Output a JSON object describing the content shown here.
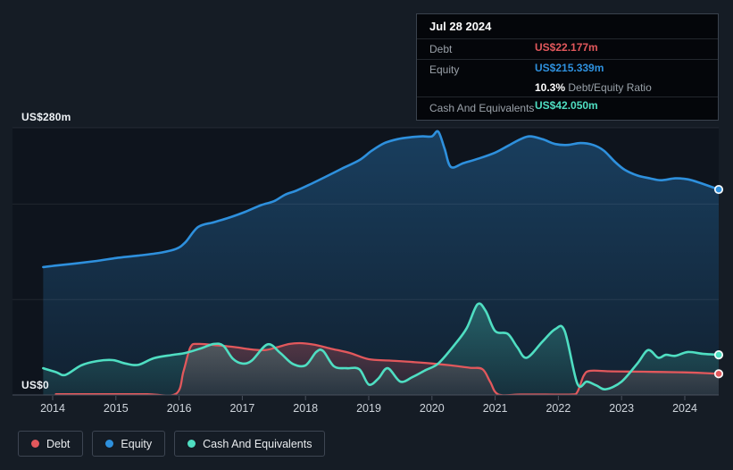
{
  "tooltip": {
    "date": "Jul 28 2024",
    "debt_label": "Debt",
    "debt_value": "US$22.177m",
    "equity_label": "Equity",
    "equity_value": "US$215.339m",
    "ratio_value": "10.3%",
    "ratio_label": "Debt/Equity Ratio",
    "cash_label": "Cash And Equivalents",
    "cash_value": "US$42.050m"
  },
  "chart_data": {
    "type": "area",
    "x_axis": {
      "ticks": [
        "2014",
        "2015",
        "2016",
        "2017",
        "2018",
        "2019",
        "2020",
        "2021",
        "2022",
        "2023",
        "2024"
      ],
      "start": 2013.85,
      "end": 2024.57
    },
    "y_axis": {
      "max_label": "US$280m",
      "zero_label": "US$0",
      "max": 280,
      "min": 0,
      "unit": "US$ millions",
      "gridlines": [
        280,
        200,
        100,
        0
      ]
    },
    "series": [
      {
        "name": "Debt",
        "key": "debt",
        "color": "#e2585c",
        "points": [
          [
            2014.05,
            0.8
          ],
          [
            2014.5,
            0.8
          ],
          [
            2015.0,
            0.8
          ],
          [
            2015.5,
            0.8
          ],
          [
            2015.95,
            1.2
          ],
          [
            2016.07,
            25
          ],
          [
            2016.18,
            50
          ],
          [
            2016.3,
            53.5
          ],
          [
            2016.6,
            52
          ],
          [
            2016.9,
            50
          ],
          [
            2017.1,
            48
          ],
          [
            2017.35,
            47
          ],
          [
            2017.55,
            50
          ],
          [
            2017.75,
            53.5
          ],
          [
            2017.95,
            54.2
          ],
          [
            2018.15,
            52.5
          ],
          [
            2018.4,
            48.5
          ],
          [
            2018.7,
            44
          ],
          [
            2019.0,
            37.5
          ],
          [
            2019.35,
            36
          ],
          [
            2019.7,
            34.5
          ],
          [
            2020.0,
            33
          ],
          [
            2020.3,
            31
          ],
          [
            2020.6,
            28.5
          ],
          [
            2020.8,
            27
          ],
          [
            2020.92,
            14
          ],
          [
            2021.05,
            0.6
          ],
          [
            2021.4,
            0.5
          ],
          [
            2021.8,
            0.5
          ],
          [
            2022.2,
            0.5
          ],
          [
            2022.3,
            3
          ],
          [
            2022.4,
            20
          ],
          [
            2022.5,
            25.3
          ],
          [
            2022.8,
            24.8
          ],
          [
            2023.1,
            24.5
          ],
          [
            2023.5,
            24.2
          ],
          [
            2023.9,
            23.8
          ],
          [
            2024.2,
            23.2
          ],
          [
            2024.57,
            22.177
          ]
        ]
      },
      {
        "name": "Equity",
        "key": "equity",
        "color": "#2e90dd",
        "points": [
          [
            2013.85,
            134
          ],
          [
            2014.1,
            136
          ],
          [
            2014.4,
            138
          ],
          [
            2014.7,
            140.5
          ],
          [
            2015.0,
            143.5
          ],
          [
            2015.35,
            146
          ],
          [
            2015.7,
            149
          ],
          [
            2015.95,
            153
          ],
          [
            2016.1,
            160
          ],
          [
            2016.3,
            176
          ],
          [
            2016.55,
            181
          ],
          [
            2016.8,
            186
          ],
          [
            2017.05,
            192
          ],
          [
            2017.3,
            199
          ],
          [
            2017.5,
            203
          ],
          [
            2017.68,
            210
          ],
          [
            2017.85,
            214
          ],
          [
            2018.05,
            220
          ],
          [
            2018.3,
            228
          ],
          [
            2018.6,
            238
          ],
          [
            2018.85,
            246
          ],
          [
            2019.05,
            256
          ],
          [
            2019.25,
            264
          ],
          [
            2019.45,
            268
          ],
          [
            2019.65,
            270
          ],
          [
            2019.85,
            271
          ],
          [
            2020.0,
            271
          ],
          [
            2020.1,
            276
          ],
          [
            2020.2,
            258
          ],
          [
            2020.3,
            239
          ],
          [
            2020.5,
            243
          ],
          [
            2020.75,
            248
          ],
          [
            2021.0,
            254
          ],
          [
            2021.2,
            261
          ],
          [
            2021.4,
            268
          ],
          [
            2021.55,
            271
          ],
          [
            2021.75,
            268
          ],
          [
            2021.95,
            263
          ],
          [
            2022.15,
            262
          ],
          [
            2022.35,
            264
          ],
          [
            2022.55,
            262
          ],
          [
            2022.72,
            256
          ],
          [
            2022.9,
            244
          ],
          [
            2023.05,
            236
          ],
          [
            2023.25,
            230
          ],
          [
            2023.45,
            227
          ],
          [
            2023.62,
            225
          ],
          [
            2023.85,
            227
          ],
          [
            2024.05,
            226
          ],
          [
            2024.25,
            222
          ],
          [
            2024.57,
            215.339
          ]
        ]
      },
      {
        "name": "Cash And Equivalents",
        "key": "cash",
        "color": "#4fdec2",
        "points": [
          [
            2013.85,
            28
          ],
          [
            2014.05,
            24
          ],
          [
            2014.2,
            21
          ],
          [
            2014.45,
            31
          ],
          [
            2014.7,
            35.5
          ],
          [
            2014.95,
            36.5
          ],
          [
            2015.15,
            33
          ],
          [
            2015.35,
            31.5
          ],
          [
            2015.6,
            38.5
          ],
          [
            2015.9,
            42
          ],
          [
            2016.1,
            44
          ],
          [
            2016.35,
            49
          ],
          [
            2016.55,
            53.5
          ],
          [
            2016.7,
            51.5
          ],
          [
            2016.85,
            38
          ],
          [
            2017.0,
            33
          ],
          [
            2017.15,
            36
          ],
          [
            2017.4,
            53
          ],
          [
            2017.6,
            44
          ],
          [
            2017.8,
            32.5
          ],
          [
            2018.0,
            31
          ],
          [
            2018.17,
            45
          ],
          [
            2018.28,
            46
          ],
          [
            2018.45,
            30
          ],
          [
            2018.65,
            28
          ],
          [
            2018.85,
            27
          ],
          [
            2019.0,
            11
          ],
          [
            2019.15,
            17
          ],
          [
            2019.3,
            28
          ],
          [
            2019.5,
            14
          ],
          [
            2019.7,
            19
          ],
          [
            2019.9,
            26
          ],
          [
            2020.1,
            33
          ],
          [
            2020.35,
            52
          ],
          [
            2020.55,
            70
          ],
          [
            2020.72,
            95
          ],
          [
            2020.85,
            88
          ],
          [
            2021.0,
            67
          ],
          [
            2021.2,
            64
          ],
          [
            2021.35,
            50
          ],
          [
            2021.5,
            39
          ],
          [
            2021.75,
            56
          ],
          [
            2021.95,
            69
          ],
          [
            2022.1,
            67
          ],
          [
            2022.3,
            12
          ],
          [
            2022.45,
            14
          ],
          [
            2022.6,
            10
          ],
          [
            2022.75,
            6
          ],
          [
            2023.0,
            14
          ],
          [
            2023.25,
            33
          ],
          [
            2023.42,
            47
          ],
          [
            2023.58,
            39
          ],
          [
            2023.7,
            42
          ],
          [
            2023.85,
            41
          ],
          [
            2024.05,
            45
          ],
          [
            2024.3,
            43
          ],
          [
            2024.57,
            42.05
          ]
        ]
      }
    ]
  }
}
